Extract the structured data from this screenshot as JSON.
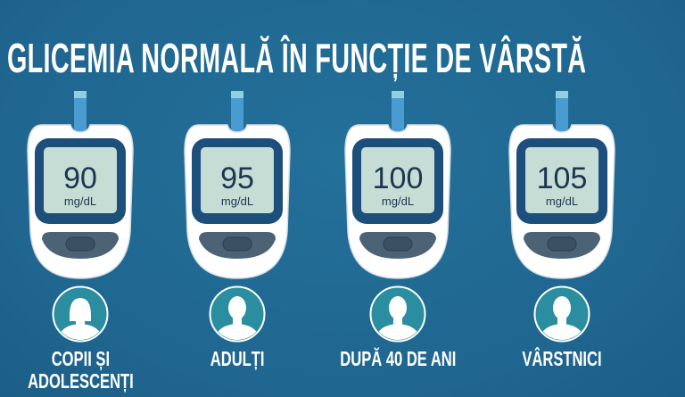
{
  "title": "GLICEMIA NORMALĂ ÎN FUNCȚIE DE VÂRSTĂ",
  "colors": {
    "background": "#21698f",
    "meter_frame": "#1d4f7d",
    "screen": "#c5ddd4",
    "strip": "#4a9bd1",
    "avatar": "#2a8ea0"
  },
  "groups": [
    {
      "value": "90",
      "unit": "mg/dL",
      "label_lines": [
        "COPII ȘI",
        "ADOLESCENȚI"
      ],
      "icon": "person-female-icon"
    },
    {
      "value": "95",
      "unit": "mg/dL",
      "label_lines": [
        "ADULȚI"
      ],
      "icon": "person-icon"
    },
    {
      "value": "100",
      "unit": "mg/dL",
      "label_lines": [
        "DUPĂ 40 DE ANI"
      ],
      "icon": "person-icon"
    },
    {
      "value": "105",
      "unit": "mg/dL",
      "label_lines": [
        "VÂRSTNICI"
      ],
      "icon": "person-icon"
    }
  ]
}
